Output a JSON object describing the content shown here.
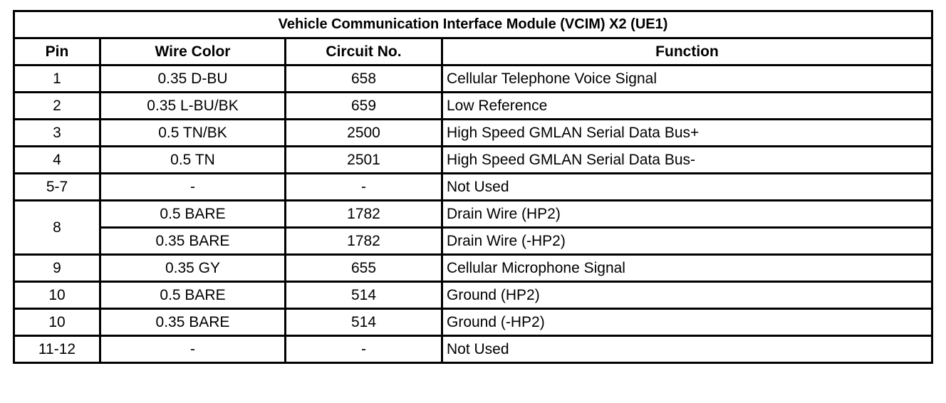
{
  "title": "Vehicle Communication Interface Module (VCIM) X2 (UE1)",
  "headers": {
    "pin": "Pin",
    "wire_color": "Wire Color",
    "circuit": "Circuit No.",
    "function": "Function"
  },
  "rows": [
    {
      "pin": "1",
      "wire_color": "0.35 D-BU",
      "circuit": "658",
      "function": "Cellular Telephone Voice Signal"
    },
    {
      "pin": "2",
      "wire_color": "0.35 L-BU/BK",
      "circuit": "659",
      "function": "Low Reference"
    },
    {
      "pin": "3",
      "wire_color": "0.5 TN/BK",
      "circuit": "2500",
      "function": "High Speed GMLAN Serial Data Bus+"
    },
    {
      "pin": "4",
      "wire_color": "0.5 TN",
      "circuit": "2501",
      "function": "High Speed GMLAN Serial Data Bus-"
    },
    {
      "pin": "5-7",
      "wire_color": "-",
      "circuit": "-",
      "function": "Not Used"
    },
    {
      "pin": "8",
      "wire_color": "0.5 BARE",
      "circuit": "1782",
      "function": "Drain Wire (HP2)"
    },
    {
      "pin": "",
      "wire_color": "0.35 BARE",
      "circuit": "1782",
      "function": "Drain Wire (-HP2)"
    },
    {
      "pin": "9",
      "wire_color": "0.35 GY",
      "circuit": "655",
      "function": "Cellular Microphone Signal"
    },
    {
      "pin": "10",
      "wire_color": "0.5 BARE",
      "circuit": "514",
      "function": "Ground (HP2)"
    },
    {
      "pin": "10",
      "wire_color": "0.35 BARE",
      "circuit": "514",
      "function": "Ground (-HP2)"
    },
    {
      "pin": "11-12",
      "wire_color": "-",
      "circuit": "-",
      "function": "Not Used"
    }
  ]
}
